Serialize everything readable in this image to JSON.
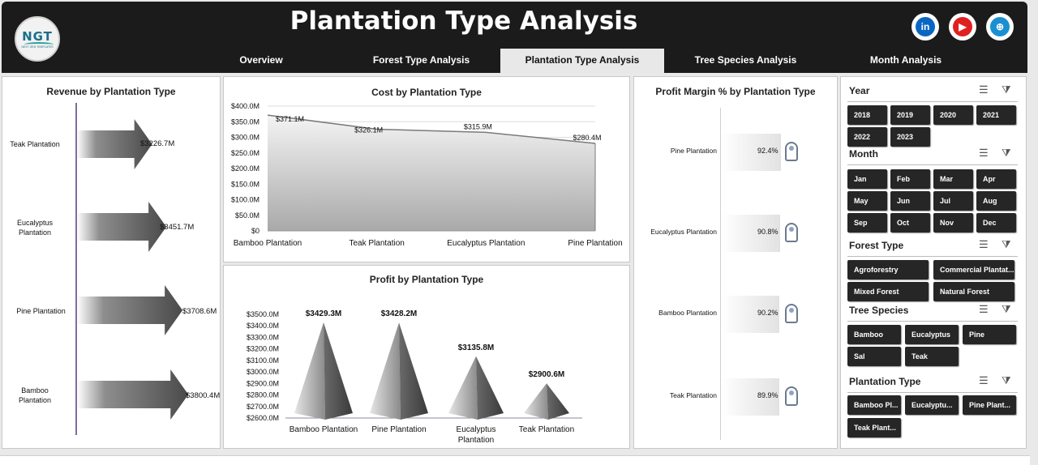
{
  "header": {
    "title": "Plantation Type Analysis",
    "logo": {
      "text": "NGT",
      "subtext": "NEXT GEN TEMPLATES"
    },
    "social": [
      {
        "icon": "linkedin-icon",
        "label": "in",
        "color": "#0a66c2"
      },
      {
        "icon": "youtube-icon",
        "label": "▶",
        "color": "#e02020"
      },
      {
        "icon": "globe-icon",
        "label": "⊕",
        "color": "#1a8fd1"
      }
    ]
  },
  "nav": {
    "tabs": [
      "Overview",
      "Forest Type Analysis",
      "Plantation Type Analysis",
      "Tree Species Analysis",
      "Month Analysis"
    ],
    "active": "Plantation Type Analysis"
  },
  "revenue": {
    "title": "Revenue by Plantation Type",
    "items": [
      {
        "label": "Teak Plantation",
        "value": "$3226.7M",
        "amount": 3226.7
      },
      {
        "label": "Eucalyptus Plantation",
        "value": "$3451.7M",
        "amount": 3451.7
      },
      {
        "label": "Pine Plantation",
        "value": "$3708.6M",
        "amount": 3708.6
      },
      {
        "label": "Bamboo Plantation",
        "value": "$3800.4M",
        "amount": 3800.4
      }
    ]
  },
  "chart_data": [
    {
      "type": "area",
      "title": "Cost by Plantation Type",
      "categories": [
        "Bamboo Plantation",
        "Teak Plantation",
        "Eucalyptus Plantation",
        "Pine Plantation"
      ],
      "values": [
        371.1,
        326.1,
        315.9,
        280.4
      ],
      "value_labels": [
        "$371.1M",
        "$326.1M",
        "$315.9M",
        "$280.4M"
      ],
      "yticks": [
        "$0",
        "$50.0M",
        "$100.0M",
        "$150.0M",
        "$200.0M",
        "$250.0M",
        "$300.0M",
        "$350.0M",
        "$400.0M"
      ],
      "ylim": [
        0,
        400
      ],
      "grid": true
    },
    {
      "type": "bar",
      "title": "Profit by Plantation Type",
      "categories": [
        "Bamboo Plantation",
        "Pine Plantation",
        "Eucalyptus Plantation",
        "Teak Plantation"
      ],
      "values": [
        3429.3,
        3428.2,
        3135.8,
        2900.6
      ],
      "value_labels": [
        "$3429.3M",
        "$3428.2M",
        "$3135.8M",
        "$2900.6M"
      ],
      "yticks": [
        "$2600.0M",
        "$2700.0M",
        "$2800.0M",
        "$2900.0M",
        "$3000.0M",
        "$3100.0M",
        "$3200.0M",
        "$3300.0M",
        "$3400.0M",
        "$3500.0M"
      ],
      "ylim": [
        2600,
        3500
      ],
      "grid": false
    },
    {
      "type": "bar",
      "title": "Profit Margin % by Plantation Type",
      "categories": [
        "Pine Plantation",
        "Eucalyptus Plantation",
        "Bamboo Plantation",
        "Teak Plantation"
      ],
      "values": [
        92.4,
        90.8,
        90.2,
        89.9
      ],
      "value_labels": [
        "92.4%",
        "90.8%",
        "90.2%",
        "89.9%"
      ]
    }
  ],
  "slicers": {
    "year": {
      "title": "Year",
      "items": [
        "2018",
        "2019",
        "2020",
        "2021",
        "2022",
        "2023"
      ]
    },
    "month": {
      "title": "Month",
      "items": [
        "Jan",
        "Feb",
        "Mar",
        "Apr",
        "May",
        "Jun",
        "Jul",
        "Aug",
        "Sep",
        "Oct",
        "Nov",
        "Dec"
      ]
    },
    "forest_type": {
      "title": "Forest Type",
      "items": [
        "Agroforestry",
        "Commercial Plantat...",
        "Mixed Forest",
        "Natural Forest"
      ]
    },
    "tree_species": {
      "title": "Tree Species",
      "items": [
        "Bamboo",
        "Eucalyptus",
        "Pine",
        "Sal",
        "Teak"
      ]
    },
    "plantation_type": {
      "title": "Plantation Type",
      "items": [
        "Bamboo Pl...",
        "Eucalyptu...",
        "Pine Plant...",
        "Teak Plant..."
      ]
    }
  }
}
